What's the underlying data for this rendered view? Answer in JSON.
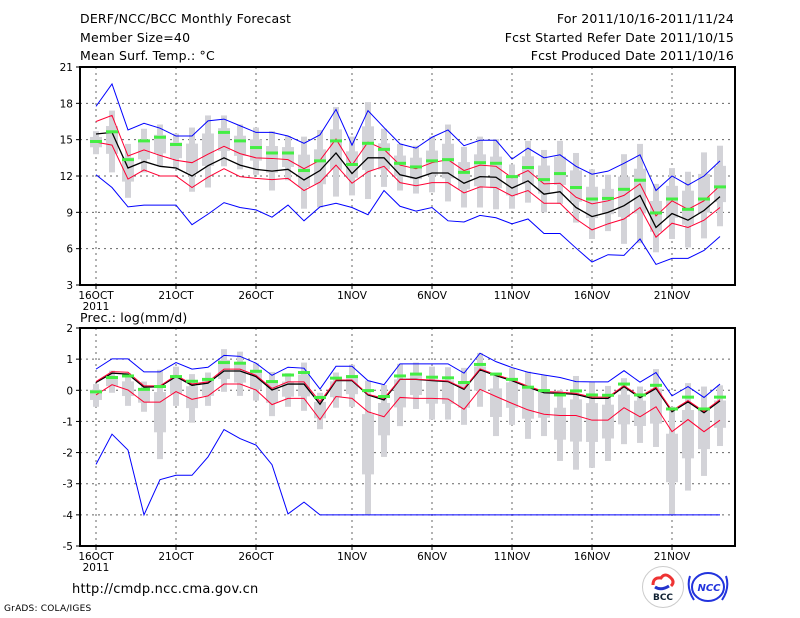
{
  "header": {
    "title": "DERF/NCC/BCC Monthly Forecast",
    "member_size": "Member Size=40",
    "period": "For 2011/10/16-2011/11/24",
    "started": "Fcst Started Refer Date 2011/10/15",
    "produced": "Fcst Produced Date 2011/10/16"
  },
  "footer": {
    "url": "http://cmdp.ncc.cma.gov.cn",
    "grads": "GrADS: COLA/IGES",
    "logo_bcc": "BCC",
    "logo_ncc": "NCC"
  },
  "colors": {
    "envelope": "#0000ff",
    "spread": "#ff0033",
    "mean": "#000000",
    "marker": "#44ee44",
    "box": "#d3d3d8"
  },
  "chart_data": [
    {
      "type": "line",
      "title": "Mean Surf. Temp.: °C",
      "ylim": [
        3,
        21
      ],
      "yticks": [
        "3",
        "6",
        "9",
        "12",
        "15",
        "18",
        "21"
      ],
      "ytick_values": [
        3,
        6,
        9,
        12,
        15,
        18,
        21
      ],
      "xticks": [
        {
          "day": 0,
          "label": "16OCT"
        },
        {
          "day": 5,
          "label": "21OCT"
        },
        {
          "day": 10,
          "label": "26OCT"
        },
        {
          "day": 16,
          "label": "1NOV"
        },
        {
          "day": 21,
          "label": "6NOV"
        },
        {
          "day": 26,
          "label": "11NOV"
        },
        {
          "day": 31,
          "label": "16NOV"
        },
        {
          "day": 36,
          "label": "21NOV"
        }
      ],
      "xyear": "2011",
      "grid": true,
      "series": [
        {
          "name": "ensemble-mean",
          "color": "#000000",
          "values": [
            15.47,
            15.6,
            12.66,
            13.2,
            12.8,
            12.66,
            12.0,
            12.85,
            13.5,
            12.9,
            12.55,
            12.4,
            12.55,
            11.67,
            12.45,
            13.9,
            12.2,
            13.5,
            13.5,
            12.1,
            11.8,
            12.25,
            12.25,
            11.4,
            11.95,
            11.9,
            11.0,
            11.6,
            10.5,
            10.7,
            9.4,
            8.65,
            9.0,
            9.55,
            10.4,
            7.75,
            8.9,
            8.35,
            9.15,
            10.3
          ]
        },
        {
          "name": "upper-spread",
          "color": "#ff0033",
          "values": [
            16.5,
            17.0,
            13.65,
            14.15,
            13.7,
            13.3,
            13.1,
            13.8,
            14.45,
            13.85,
            13.5,
            13.45,
            13.35,
            12.6,
            13.3,
            15.05,
            12.9,
            14.8,
            14.2,
            12.9,
            12.6,
            13.1,
            13.35,
            12.45,
            12.9,
            12.8,
            11.85,
            12.45,
            11.35,
            11.4,
            10.25,
            9.7,
            9.95,
            10.4,
            11.35,
            8.7,
            9.95,
            9.25,
            9.95,
            11.2
          ]
        },
        {
          "name": "lower-spread",
          "color": "#ff0033",
          "values": [
            14.8,
            14.55,
            11.75,
            12.5,
            12.0,
            12.0,
            11.05,
            11.9,
            12.6,
            11.95,
            11.8,
            11.7,
            11.8,
            10.8,
            11.5,
            12.9,
            11.4,
            12.35,
            12.8,
            11.45,
            11.2,
            11.45,
            11.45,
            10.6,
            11.1,
            11.05,
            10.35,
            10.8,
            9.75,
            9.75,
            8.45,
            7.55,
            8.05,
            8.45,
            9.4,
            6.95,
            8.1,
            7.75,
            8.35,
            9.4
          ]
        },
        {
          "name": "upper-envelope",
          "color": "#0000ff",
          "values": [
            17.75,
            19.6,
            15.8,
            16.35,
            15.95,
            15.3,
            15.3,
            16.55,
            16.7,
            16.15,
            15.6,
            15.6,
            15.3,
            14.7,
            15.4,
            17.5,
            14.55,
            17.4,
            16.0,
            14.65,
            14.3,
            15.2,
            15.8,
            14.5,
            14.95,
            14.95,
            13.4,
            14.3,
            13.5,
            13.75,
            12.8,
            12.15,
            12.4,
            13.05,
            13.75,
            10.8,
            12.0,
            11.25,
            12.0,
            13.25
          ]
        },
        {
          "name": "lower-envelope",
          "color": "#0000ff",
          "values": [
            12.1,
            11.05,
            9.45,
            9.6,
            9.6,
            9.6,
            7.98,
            8.85,
            9.8,
            9.4,
            9.2,
            8.6,
            9.6,
            8.3,
            9.45,
            9.75,
            9.4,
            8.8,
            10.8,
            9.5,
            9.1,
            9.4,
            8.3,
            8.2,
            8.75,
            8.55,
            8.05,
            8.45,
            7.25,
            7.25,
            6.05,
            4.9,
            5.5,
            5.45,
            6.8,
            4.7,
            5.2,
            5.2,
            5.85,
            7.0
          ]
        }
      ],
      "markers": [
        14.85,
        15.65,
        13.35,
        14.9,
        15.2,
        14.6,
        null,
        null,
        15.6,
        14.9,
        14.35,
        13.9,
        13.9,
        12.45,
        13.25,
        14.9,
        12.95,
        14.7,
        14.2,
        13.05,
        12.75,
        13.25,
        13.35,
        12.3,
        13.1,
        13.05,
        11.95,
        12.7,
        11.7,
        12.2,
        11.05,
        10.1,
        10.15,
        10.9,
        11.65,
        8.95,
        10.1,
        9.25,
        10.1,
        11.1
      ],
      "box_max": [
        15.7,
        17.4,
        14.65,
        15.9,
        16.25,
        15.5,
        16.0,
        17.0,
        17.0,
        16.25,
        16.0,
        15.7,
        15.3,
        15.25,
        15.8,
        17.7,
        15.25,
        18.1,
        15.9,
        14.65,
        14.5,
        15.25,
        16.25,
        14.4,
        15.25,
        15.05,
        12.95,
        14.9,
        14.15,
        14.9,
        13.9,
        12.55,
        12.1,
        13.8,
        14.65,
        11.35,
        12.65,
        12.35,
        13.95,
        14.5
      ],
      "box_min": [
        13.8,
        12.3,
        10.2,
        12.3,
        12.85,
        12.6,
        10.7,
        11.05,
        12.8,
        12.55,
        12.1,
        10.8,
        11.65,
        9.3,
        9.4,
        10.3,
        10.4,
        10.1,
        11.1,
        10.8,
        10.55,
        10.65,
        9.9,
        9.4,
        9.4,
        9.25,
        9.3,
        9.8,
        9.0,
        9.7,
        8.15,
        6.8,
        7.45,
        6.4,
        6.45,
        5.7,
        6.8,
        6.1,
        6.85,
        7.85
      ]
    },
    {
      "type": "line",
      "title": "Prec.: log(mm/d)",
      "ylim": [
        -5,
        2
      ],
      "yticks": [
        "-5",
        "-4",
        "-3",
        "-2",
        "-1",
        "0",
        "1",
        "2"
      ],
      "ytick_values": [
        -5,
        -4,
        -3,
        -2,
        -1,
        0,
        1,
        2
      ],
      "xticks": [
        {
          "day": 0,
          "label": "16OCT"
        },
        {
          "day": 5,
          "label": "21OCT"
        },
        {
          "day": 10,
          "label": "26OCT"
        },
        {
          "day": 16,
          "label": "1NOV"
        },
        {
          "day": 21,
          "label": "6NOV"
        },
        {
          "day": 26,
          "label": "11NOV"
        },
        {
          "day": 31,
          "label": "16NOV"
        },
        {
          "day": 36,
          "label": "21NOV"
        }
      ],
      "xyear": "2011",
      "grid": true,
      "series": [
        {
          "name": "ensemble-mean",
          "color": "#000000",
          "values": [
            0.25,
            0.55,
            0.52,
            0.1,
            0.12,
            0.44,
            0.16,
            0.23,
            0.62,
            0.62,
            0.44,
            0.01,
            0.2,
            0.2,
            -0.45,
            0.31,
            0.31,
            -0.15,
            -0.31,
            0.35,
            0.35,
            0.31,
            0.28,
            0.03,
            0.66,
            0.47,
            0.31,
            0.1,
            -0.08,
            -0.1,
            -0.13,
            -0.26,
            -0.26,
            0.12,
            -0.24,
            0.06,
            -0.69,
            -0.37,
            -0.72,
            -0.34
          ]
        },
        {
          "name": "upper-spread",
          "color": "#ff0033",
          "values": [
            0.28,
            0.6,
            0.58,
            0.14,
            0.14,
            0.48,
            0.2,
            0.27,
            0.68,
            0.68,
            0.48,
            0.06,
            0.27,
            0.27,
            -0.37,
            0.33,
            0.33,
            -0.13,
            -0.26,
            0.35,
            0.35,
            0.33,
            0.3,
            0.06,
            0.69,
            0.5,
            0.34,
            0.13,
            -0.04,
            -0.06,
            -0.1,
            -0.22,
            -0.22,
            0.15,
            -0.2,
            0.1,
            -0.65,
            -0.33,
            -0.68,
            -0.3
          ]
        },
        {
          "name": "lower-spread",
          "color": "#ff0033",
          "values": [
            -0.15,
            0.18,
            0.01,
            -0.38,
            -0.38,
            -0.04,
            -0.29,
            -0.18,
            0.2,
            0.2,
            0.01,
            -0.46,
            -0.26,
            -0.26,
            -0.94,
            -0.2,
            -0.26,
            -0.69,
            -0.85,
            -0.23,
            -0.26,
            -0.26,
            -0.28,
            -0.61,
            0.03,
            -0.2,
            -0.42,
            -0.63,
            -0.77,
            -0.81,
            -0.81,
            -0.96,
            -0.96,
            -0.56,
            -0.85,
            -0.53,
            -1.33,
            -0.94,
            -1.33,
            -0.96
          ]
        },
        {
          "name": "upper-envelope",
          "color": "#0000ff",
          "values": [
            0.68,
            1.01,
            1.01,
            0.59,
            0.59,
            0.89,
            0.68,
            0.74,
            1.12,
            1.09,
            0.87,
            0.48,
            0.74,
            0.71,
            0.04,
            0.77,
            0.77,
            0.31,
            0.18,
            0.85,
            0.85,
            0.85,
            0.85,
            0.55,
            1.19,
            0.92,
            0.73,
            0.58,
            0.49,
            0.41,
            0.28,
            0.27,
            0.27,
            0.63,
            0.26,
            0.57,
            -0.18,
            0.12,
            -0.23,
            0.2
          ]
        },
        {
          "name": "lower-envelope",
          "color": "#0000ff",
          "values": [
            -2.38,
            -1.41,
            -1.92,
            -4.0,
            -2.87,
            -2.73,
            -2.73,
            -2.14,
            -1.26,
            -1.55,
            -1.76,
            -2.39,
            -3.97,
            -3.59,
            -4,
            -4,
            -4,
            -4,
            -4,
            -4,
            -4,
            -4,
            -4,
            -4,
            -4,
            -4,
            -4,
            -4,
            -4,
            -4,
            -4,
            -4,
            -4,
            -4,
            -4,
            -4,
            -4,
            -4,
            -4,
            -4
          ]
        }
      ],
      "markers": [
        -0.05,
        0.41,
        0.46,
        0.03,
        0.12,
        0.44,
        0.29,
        0.35,
        0.89,
        0.87,
        0.61,
        0.28,
        0.49,
        0.57,
        -0.23,
        0.39,
        0.44,
        -0.01,
        -0.2,
        0.46,
        0.52,
        0.42,
        0.4,
        0.25,
        0.83,
        0.52,
        0.35,
        0.1,
        -0.01,
        -0.15,
        -0.02,
        -0.15,
        -0.16,
        0.2,
        -0.15,
        0.16,
        -0.6,
        -0.22,
        -0.6,
        -0.22
      ],
      "box_max": [
        0.2,
        0.63,
        0.55,
        0.28,
        0.66,
        0.76,
        0.52,
        0.57,
        1.32,
        1.24,
        0.87,
        0.59,
        0.55,
        0.89,
        -0.08,
        0.57,
        0.82,
        0.31,
        0.17,
        0.85,
        0.89,
        0.76,
        0.74,
        0.72,
        1.2,
        0.57,
        0.71,
        0.6,
        0.49,
        0.01,
        0.46,
        0.28,
        0.14,
        0.39,
        0.12,
        0.68,
        -0.53,
        0.23,
        0.12,
        0.16
      ],
      "box_min": [
        -0.53,
        -0.08,
        -0.5,
        -0.69,
        -2.21,
        -0.5,
        -1.04,
        -0.5,
        -0.05,
        -0.18,
        -0.33,
        -0.83,
        -0.53,
        -0.66,
        -1.25,
        -0.56,
        -0.53,
        -3.99,
        -2.14,
        -1.15,
        -0.6,
        -0.94,
        -0.94,
        -1.11,
        -0.53,
        -1.47,
        -1.11,
        -1.56,
        -1.47,
        -2.27,
        -2.55,
        -2.49,
        -2.27,
        -1.73,
        -1.69,
        -1.82,
        -3.99,
        -3.22,
        -2.75,
        -1.79
      ]
    }
  ]
}
